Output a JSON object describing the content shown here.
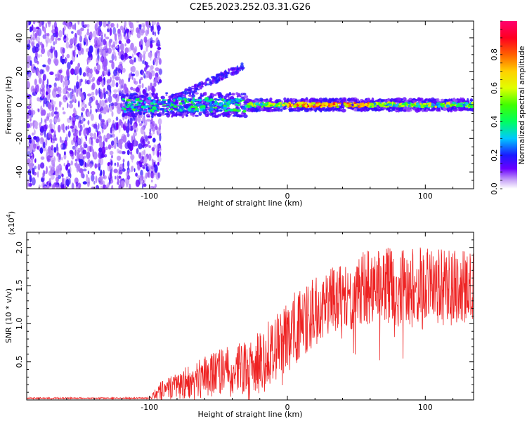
{
  "title": "C2E5.2023.252.03.31.G26",
  "chart_data": [
    {
      "type": "heatmap",
      "xlabel": "Height of straight line (km)",
      "ylabel": "Frequency (Hz)",
      "xlim": [
        -189,
        135
      ],
      "ylim": [
        -50,
        50
      ],
      "xticks": [
        -100,
        0,
        100
      ],
      "yticks": [
        -40,
        -20,
        0,
        20,
        40
      ],
      "colorbar": {
        "label": "Normalized spectral amplitude",
        "range": [
          0,
          1
        ],
        "ticks": [
          "0.0",
          "0.2",
          "0.4",
          "0.6",
          "0.8"
        ],
        "tick_values": [
          0,
          0.2,
          0.4,
          0.6,
          0.8
        ]
      },
      "features": [
        {
          "name": "noise-region",
          "x_range": [
            -189,
            -100
          ],
          "y_range": [
            -50,
            50
          ],
          "amplitude": 0.15
        },
        {
          "name": "main-ridge",
          "x_range": [
            -120,
            135
          ],
          "frequency": 0,
          "amplitude": 0.8
        },
        {
          "name": "upper-branch",
          "x_range": [
            -80,
            -32
          ],
          "frequency_range": [
            5,
            23
          ],
          "amplitude": 0.25
        }
      ]
    },
    {
      "type": "line",
      "xlabel": "Height of straight line (km)",
      "ylabel": "SNR (10 * v/v)",
      "yscale_label": "(x10",
      "yscale_exp": "4",
      "yscale_close": ")",
      "xlim": [
        -189,
        135
      ],
      "ylim": [
        0,
        2.2
      ],
      "xticks": [
        -100,
        0,
        100
      ],
      "yticks": [
        0.5,
        1.0,
        1.5,
        2.0
      ],
      "ytick_labels": [
        "0.5",
        "1.0",
        "1.5",
        "2.0"
      ],
      "series": [
        {
          "name": "SNR",
          "color": "#ee2222",
          "envelope": [
            {
              "x": -189,
              "base": 0.02,
              "spread": 0.01
            },
            {
              "x": -100,
              "base": 0.02,
              "spread": 0.01
            },
            {
              "x": -92,
              "base": 0.08,
              "spread": 0.12
            },
            {
              "x": -60,
              "base": 0.22,
              "spread": 0.28
            },
            {
              "x": -20,
              "base": 0.35,
              "spread": 0.42
            },
            {
              "x": 0,
              "base": 0.7,
              "spread": 0.5
            },
            {
              "x": 30,
              "base": 1.15,
              "spread": 0.45
            },
            {
              "x": 60,
              "base": 1.35,
              "spread": 0.5
            },
            {
              "x": 100,
              "base": 1.3,
              "spread": 0.55
            },
            {
              "x": 135,
              "base": 1.35,
              "spread": 0.45
            }
          ]
        }
      ]
    }
  ]
}
